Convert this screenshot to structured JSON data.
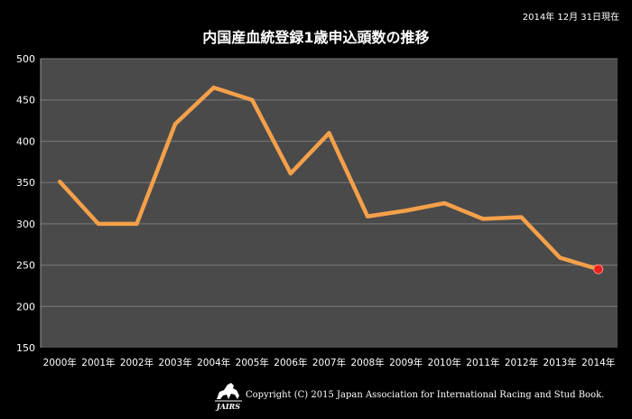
{
  "date_note": "2014年 12月 31日現在",
  "copyright": "Copyright (C) 2015 Japan Association for International Racing and Stud Book.",
  "logo_text": "JAIRS",
  "colors": {
    "background": "#000000",
    "plot_area": "#4a4a4a",
    "line": "#f4a04a",
    "last_marker": "#e8231c",
    "grid": "#7a7a7a"
  },
  "chart_data": {
    "type": "line",
    "title": "内国産血統登録1歳申込頭数の推移",
    "categories": [
      "2000年",
      "2001年",
      "2002年",
      "2003年",
      "2004年",
      "2005年",
      "2006年",
      "2007年",
      "2008年",
      "2009年",
      "2010年",
      "2011年",
      "2012年",
      "2013年",
      "2014年"
    ],
    "values": [
      351,
      300,
      300,
      421,
      465,
      450,
      361,
      410,
      309,
      316,
      325,
      306,
      308,
      259,
      245
    ],
    "ylim": [
      150,
      500
    ],
    "yticks": [
      150,
      200,
      250,
      300,
      350,
      400,
      450,
      500
    ],
    "grid": true,
    "legend": "none",
    "highlight_last_point": true
  }
}
